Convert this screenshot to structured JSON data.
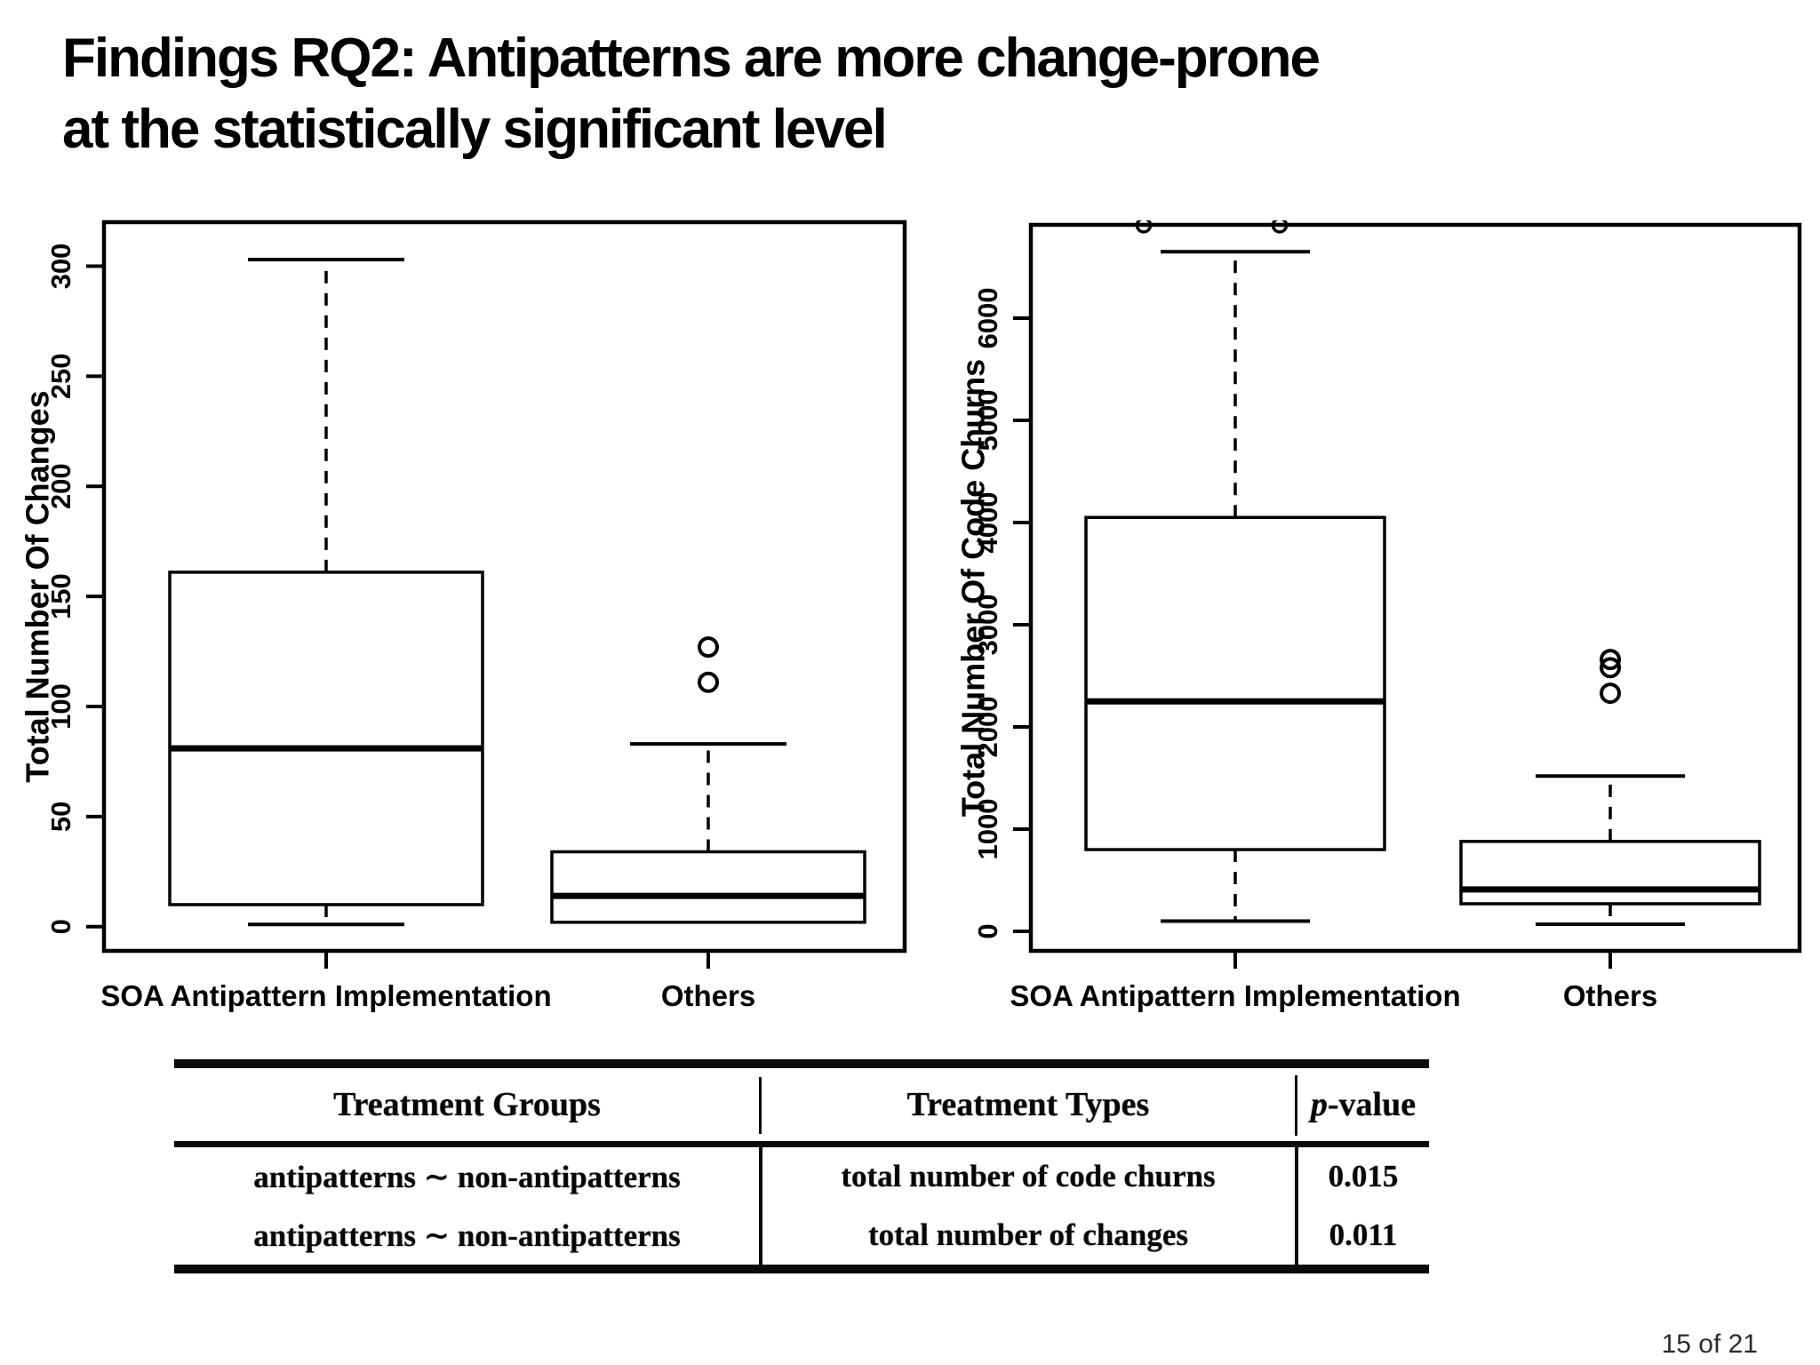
{
  "slide": {
    "title_line1": "Findings RQ2: Antipatterns are more change-prone",
    "title_line2": "at the statistically significant level",
    "page_indicator": "15 of 21"
  },
  "chart_data": [
    {
      "type": "boxplot",
      "name": "changes-boxplot",
      "ylabel": "Total Number Of Changes",
      "categories": [
        "SOA Antipattern Implementation",
        "Others"
      ],
      "yticks": [
        0,
        50,
        100,
        150,
        200,
        250,
        300
      ],
      "ylim": [
        0,
        300
      ],
      "ylim_draw": [
        -11,
        320
      ],
      "grid": false,
      "legend": "none",
      "series": [
        {
          "name": "SOA Antipattern Implementation",
          "whisker_low": 1,
          "q1": 10,
          "median": 81,
          "q3": 161,
          "whisker_high": 303,
          "outliers": []
        },
        {
          "name": "Others",
          "whisker_low": 2,
          "q1": 2,
          "median": 14,
          "q3": 34,
          "whisker_high": 83,
          "outliers": [
            111,
            127
          ]
        }
      ]
    },
    {
      "type": "boxplot",
      "name": "churns-boxplot",
      "ylabel": "Total Number Of Code Churns",
      "categories": [
        "SOA Antipattern Implementation",
        "Others"
      ],
      "yticks": [
        0,
        1000,
        2000,
        3000,
        4000,
        5000,
        6000
      ],
      "ylim": [
        0,
        6000
      ],
      "ylim_draw": [
        -191,
        6913
      ],
      "grid": false,
      "legend": "none",
      "series": [
        {
          "name": "SOA Antipattern Implementation",
          "whisker_low": 100,
          "q1": 800,
          "median": 2250,
          "q3": 4050,
          "whisker_high": 6650,
          "outliers": [],
          "clipped_outliers": [
            6950,
            6960
          ]
        },
        {
          "name": "Others",
          "whisker_low": 70,
          "q1": 270,
          "median": 410,
          "q3": 880,
          "whisker_high": 1520,
          "outliers": [
            2330,
            2580,
            2660
          ]
        }
      ]
    }
  ],
  "table": {
    "headers": [
      "Treatment Groups",
      "Treatment Types",
      "p-value"
    ],
    "header_col1": "Treatment Groups",
    "header_col2": "Treatment Types",
    "header_p_italic": "p",
    "header_p_rest": "-value",
    "rows": [
      {
        "treatment_groups": "antipatterns ∼ non-antipatterns",
        "treatment_types": "total number of code churns",
        "p_value": "0.015"
      },
      {
        "treatment_groups": "antipatterns ∼ non-antipatterns",
        "treatment_types": "total number of changes",
        "p_value": "0.011"
      }
    ]
  }
}
